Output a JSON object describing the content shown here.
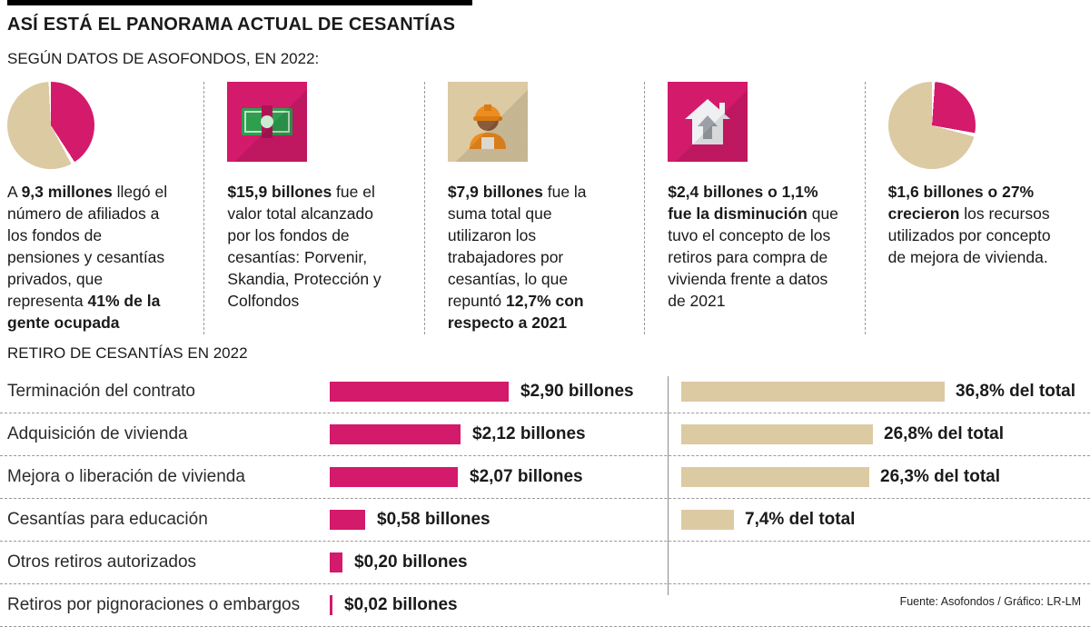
{
  "header": {
    "title": "ASÍ ESTÁ EL PANORAMA ACTUAL DE CESANTÍAS",
    "subtitle": "SEGÚN DATOS DE ASOFONDOS, EN 2022:"
  },
  "colors": {
    "accent": "#d31a6b",
    "tan": "#dccaa2"
  },
  "stats": [
    {
      "icon": "pie-chart-41",
      "p1": "A ",
      "b1": "9,3 millones",
      "p2": " llegó el número de afiliados a los fondos de pensiones y cesantías privados, que representa ",
      "b2": "41% de la gente ocupada"
    },
    {
      "icon": "money-bills",
      "b1": "$15,9 billones",
      "p1": " fue el valor total alcanzado por los fondos de cesantías: Porvenir, Skandia, Protección y Colfondos"
    },
    {
      "icon": "construction-worker",
      "b1": "$7,9 billones",
      "p1": " fue la suma total que utilizaron los trabajadores por cesantías, lo que repuntó ",
      "b2": "12,7% con respecto a 2021"
    },
    {
      "icon": "house-arrow",
      "b1": "$2,4 billones o 1,1% fue la disminución",
      "p1": " que tuvo el concepto de los retiros para compra de vivienda frente a datos de 2021"
    },
    {
      "icon": "pie-chart-27",
      "b1": "$1,6 billones o 27% crecieron",
      "p1": " los recursos utilizados por concepto de mejora de vivienda."
    }
  ],
  "chart_data": {
    "type": "bar",
    "title": "RETIRO DE CESANTÍAS EN 2022",
    "categories": [
      "Terminación del contrato",
      "Adquisición de vivienda",
      "Mejora o liberación de vivienda",
      "Cesantías para educación",
      "Otros retiros autorizados",
      "Retiros por pignoraciones o embargos"
    ],
    "values_billones": [
      2.9,
      2.12,
      2.07,
      0.58,
      0.2,
      0.02
    ],
    "value_labels": [
      "$2,90 billones",
      "$2,12 billones",
      "$2,07 billones",
      "$0,58 billones",
      "$0,20 billones",
      "$0,02 billones"
    ],
    "pct_of_total": [
      36.8,
      26.8,
      26.3,
      7.4,
      null,
      null
    ],
    "pct_labels": [
      "36,8% del total",
      "26,8% del total",
      "26,3% del total",
      "7,4% del total",
      "",
      ""
    ],
    "xmax_value": 2.9,
    "xmax_pct": 36.8
  },
  "footer": {
    "source": "Fuente: Asofondos / Gráfico: LR-LM"
  }
}
